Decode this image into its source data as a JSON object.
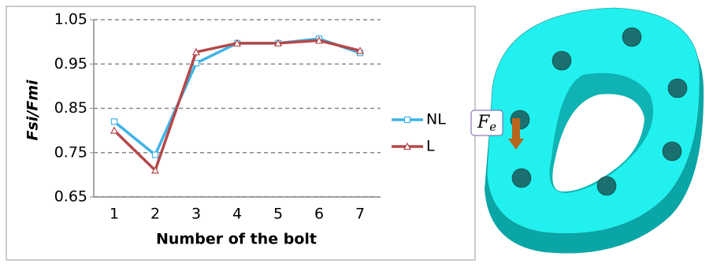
{
  "chart_data": {
    "type": "line",
    "y_label": "Fsi/Fmi",
    "x_label": "Number of the bolt",
    "categories": [
      "1",
      "2",
      "3",
      "4",
      "5",
      "6",
      "7"
    ],
    "series": [
      {
        "name": "NL",
        "color": "#3fb3e6",
        "marker": "square",
        "values": [
          0.82,
          0.745,
          0.952,
          0.997,
          0.997,
          1.007,
          0.975
        ]
      },
      {
        "name": "L",
        "color": "#b5484a",
        "marker": "triangle",
        "values": [
          0.8,
          0.71,
          0.977,
          0.997,
          0.997,
          1.003,
          0.98
        ]
      }
    ],
    "ylim": [
      0.65,
      1.05
    ],
    "yticks": [
      0.65,
      0.75,
      0.85,
      0.95,
      1.05
    ],
    "grid": true
  },
  "diagram": {
    "force_label": "F",
    "force_subscript": "e"
  }
}
